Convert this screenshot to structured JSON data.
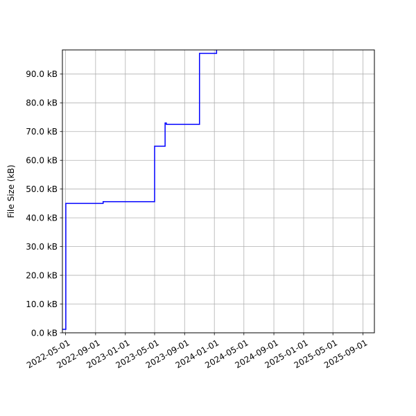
{
  "chart_data": {
    "type": "line",
    "title": "",
    "xlabel": "",
    "ylabel": "File Size (kB)",
    "x_type": "date",
    "xlim": [
      "2022-04-18",
      "2025-10-18"
    ],
    "ylim": [
      0,
      98.4
    ],
    "grid": true,
    "x_ticks": [
      "2022-05-01",
      "2022-09-01",
      "2023-01-01",
      "2023-05-01",
      "2023-09-01",
      "2024-01-01",
      "2024-05-01",
      "2024-09-01",
      "2025-01-01",
      "2025-05-01",
      "2025-09-01"
    ],
    "y_ticks": [
      0,
      10,
      20,
      30,
      40,
      50,
      60,
      70,
      80,
      90
    ],
    "y_tick_labels": [
      "0.0 kB",
      "10.0 kB",
      "20.0 kB",
      "30.0 kB",
      "40.0 kB",
      "50.0 kB",
      "60.0 kB",
      "70.0 kB",
      "80.0 kB",
      "90.0 kB"
    ],
    "series": [
      {
        "color": "#0000ff",
        "step": true,
        "points": [
          [
            "2022-04-18",
            1.2
          ],
          [
            "2022-05-02",
            1.2
          ],
          [
            "2022-05-02",
            45.0
          ],
          [
            "2022-10-02",
            45.0
          ],
          [
            "2022-10-02",
            45.6
          ],
          [
            "2023-05-01",
            45.6
          ],
          [
            "2023-05-01",
            64.9
          ],
          [
            "2023-06-13",
            64.9
          ],
          [
            "2023-06-13",
            73.0
          ],
          [
            "2023-06-18",
            73.0
          ],
          [
            "2023-06-18",
            72.5
          ],
          [
            "2023-11-01",
            72.5
          ],
          [
            "2023-11-01",
            97.2
          ],
          [
            "2024-01-10",
            97.2
          ],
          [
            "2024-01-10",
            98.6
          ]
        ]
      }
    ]
  }
}
